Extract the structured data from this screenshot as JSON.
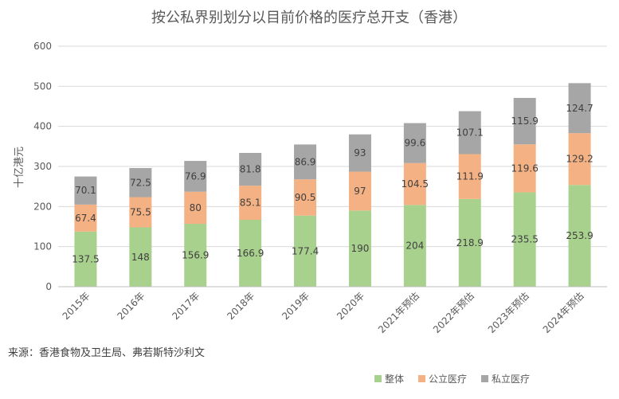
{
  "chart_data": {
    "type": "bar",
    "stacked": true,
    "title": "按公私界别划分以目前价格的医疗总开支（香港）",
    "xlabel": "",
    "ylabel": "十亿港元",
    "ylim": [
      0,
      600
    ],
    "yticks": [
      0,
      100,
      200,
      300,
      400,
      500,
      600
    ],
    "grid": true,
    "legend_position": "bottom-right",
    "categories": [
      "2015年",
      "2016年",
      "2017年",
      "2018年",
      "2019年",
      "2020年",
      "2021年预估",
      "2022年预估",
      "2023年预估",
      "2024年预估"
    ],
    "series": [
      {
        "name": "整体",
        "color": "#a9d18e",
        "values": [
          137.5,
          148,
          156.9,
          166.9,
          177.4,
          190,
          204,
          218.9,
          235.5,
          253.9
        ],
        "labels": [
          "137.5",
          "148",
          "156.9",
          "166.9",
          "177.4",
          "190",
          "204",
          "218.9",
          "235.5",
          "253.9"
        ]
      },
      {
        "name": "公立医疗",
        "color": "#f4b183",
        "values": [
          67.4,
          75.5,
          80,
          85.1,
          90.5,
          97,
          104.5,
          111.9,
          119.6,
          129.2
        ],
        "labels": [
          "67.4",
          "75.5",
          "80",
          "85.1",
          "90.5",
          "97",
          "104.5",
          "111.9",
          "119.6",
          "129.2"
        ]
      },
      {
        "name": "私立医疗",
        "color": "#a6a6a6",
        "values": [
          70.1,
          72.5,
          76.9,
          81.8,
          86.9,
          93,
          99.6,
          107.1,
          115.9,
          124.7
        ],
        "labels": [
          "70.1",
          "72.5",
          "76.9",
          "81.8",
          "86.9",
          "93",
          "99.6",
          "107.1",
          "115.9",
          "124.7"
        ]
      }
    ],
    "source": "来源：香港食物及卫生局、弗若斯特沙利文"
  }
}
